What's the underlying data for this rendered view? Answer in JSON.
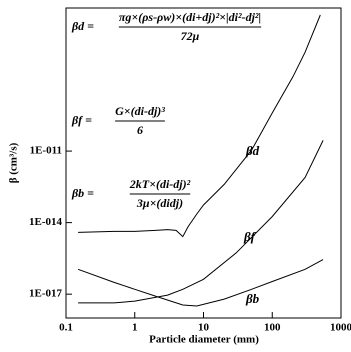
{
  "chart_data": {
    "type": "line",
    "xlabel": "Particle diameter (mm)",
    "ylabel": "β (cm³/s)",
    "xscale": "log",
    "yscale": "log",
    "xlim": [
      0.1,
      1000
    ],
    "ylim": [
      1e-18,
      1e-05
    ],
    "xticks": [
      0.1,
      1,
      10,
      100,
      1000
    ],
    "yticks": [
      {
        "value": 1e-11,
        "label": "1E-011"
      },
      {
        "value": 1e-14,
        "label": "1E-014"
      },
      {
        "value": 1e-17,
        "label": "1E-017"
      }
    ],
    "series": [
      {
        "name": "βd",
        "color": "#000000",
        "x": [
          0.15,
          0.5,
          1,
          2,
          3,
          4,
          5,
          6,
          8,
          10,
          20,
          50,
          100,
          200,
          300,
          500
        ],
        "values": [
          3.9e-15,
          4.3e-15,
          4.3e-15,
          4.7e-15,
          5.1e-15,
          4.7e-15,
          2.6e-15,
          6.9e-15,
          2.3e-14,
          5.5e-14,
          4e-13,
          1.1e-11,
          4e-10,
          1.3e-08,
          1.4e-07,
          5.1e-06
        ]
      },
      {
        "name": "βf",
        "color": "#000000",
        "x": [
          0.15,
          0.5,
          1,
          3,
          5,
          10,
          30,
          100,
          300,
          550
        ],
        "values": [
          4.3e-18,
          4.3e-18,
          5.1e-18,
          9.1e-18,
          1.6e-17,
          4.2e-17,
          5.4e-16,
          1.8e-14,
          7.8e-13,
          2.8e-11
        ]
      },
      {
        "name": "βb",
        "color": "#000000",
        "x": [
          0.15,
          0.5,
          1,
          2,
          5,
          8,
          20,
          50,
          100,
          300,
          550
        ],
        "values": [
          1.1e-16,
          3.1e-17,
          1.6e-17,
          8.3e-18,
          3.5e-18,
          3.2e-18,
          6.2e-18,
          1.6e-17,
          3.4e-17,
          1.1e-16,
          2.8e-16
        ]
      }
    ],
    "annotations": [
      {
        "lhs": "βd =",
        "numerator": "πg×(ρs-ρw)×(di+dj)²×|di²-dj²|",
        "denominator": "72μ"
      },
      {
        "lhs": "βf =",
        "numerator": "G×(di-dj)³",
        "denominator": "6"
      },
      {
        "lhs": "βb =",
        "numerator": "2kT×(di-dj)²",
        "denominator": "3μ×(didj)"
      }
    ]
  }
}
